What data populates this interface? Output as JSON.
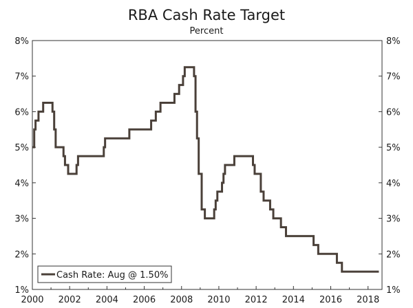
{
  "chart_data": {
    "type": "line",
    "title": "RBA Cash Rate Target",
    "subtitle": "Percent",
    "xlabel": "",
    "ylabel": "",
    "xlim": [
      2000.0,
      2018.75
    ],
    "ylim": [
      1,
      8
    ],
    "x_ticks": [
      2000,
      2002,
      2004,
      2006,
      2008,
      2010,
      2012,
      2014,
      2016,
      2018
    ],
    "x_tick_labels": [
      "2000",
      "2002",
      "2004",
      "2006",
      "2008",
      "2010",
      "2012",
      "2014",
      "2016",
      "2018"
    ],
    "y_ticks": [
      1,
      2,
      3,
      4,
      5,
      6,
      7,
      8
    ],
    "y_tick_labels_left": [
      "1%",
      "2%",
      "3%",
      "4%",
      "5%",
      "6%",
      "7%",
      "8%"
    ],
    "y_tick_labels_right": [
      "1%",
      "2%",
      "3%",
      "4%",
      "5%",
      "6%",
      "7%",
      "8%"
    ],
    "grid": false,
    "legend_position": "bottom-left",
    "series": [
      {
        "name": "Cash Rate: Aug @ 1.50%",
        "color": "#4a4039",
        "step": true,
        "x": [
          2000.0,
          2000.1,
          2000.17,
          2000.33,
          2000.58,
          2001.08,
          2001.17,
          2001.25,
          2001.67,
          2001.75,
          2001.83,
          2001.92,
          2002.37,
          2002.45,
          2003.83,
          2003.9,
          2005.2,
          2006.37,
          2006.62,
          2006.87,
          2007.62,
          2007.87,
          2008.08,
          2008.17,
          2008.67,
          2008.75,
          2008.83,
          2008.92,
          2009.08,
          2009.25,
          2009.75,
          2009.83,
          2009.92,
          2010.17,
          2010.25,
          2010.33,
          2010.83,
          2011.83,
          2011.92,
          2012.25,
          2012.4,
          2012.45,
          2012.75,
          2012.92,
          2013.33,
          2013.6,
          2015.08,
          2015.33,
          2016.33,
          2016.6,
          2018.58
        ],
        "y": [
          5.0,
          5.5,
          5.75,
          6.0,
          6.25,
          6.0,
          5.5,
          5.0,
          4.75,
          4.5,
          4.5,
          4.25,
          4.5,
          4.75,
          5.0,
          5.25,
          5.5,
          5.75,
          6.0,
          6.25,
          6.5,
          6.75,
          7.0,
          7.25,
          7.0,
          6.0,
          5.25,
          4.25,
          3.25,
          3.0,
          3.25,
          3.5,
          3.75,
          4.0,
          4.25,
          4.5,
          4.75,
          4.5,
          4.25,
          3.75,
          3.5,
          3.5,
          3.25,
          3.0,
          2.75,
          2.5,
          2.25,
          2.0,
          1.75,
          1.5,
          1.5
        ]
      }
    ]
  }
}
